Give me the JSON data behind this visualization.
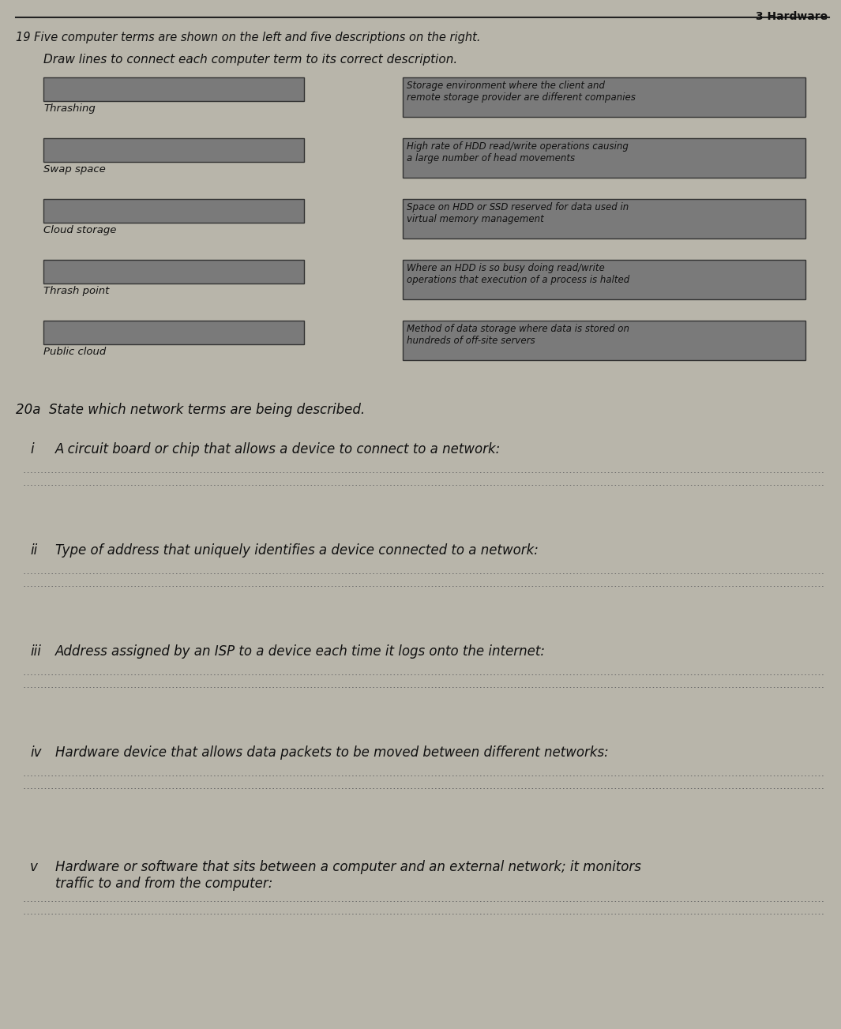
{
  "page_header": "3 Hardware",
  "bg_color": "#b8b5aa",
  "section_title": "19 Five computer terms are shown on the left and five descriptions on the right.",
  "section_subtitle": "Draw lines to connect each computer term to its correct description.",
  "left_terms": [
    "Thrashing",
    "Swap space",
    "Cloud storage",
    "Thrash point",
    "Public cloud"
  ],
  "right_descriptions": [
    "Storage environment where the client and\nremote storage provider are different companies",
    "High rate of HDD read/write operations causing\na large number of head movements",
    "Space on HDD or SSD reserved for data used in\nvirtual memory management",
    "Where an HDD is so busy doing read/write\noperations that execution of a process is halted",
    "Method of data storage where data is stored on\nhundreds of off-site servers"
  ],
  "left_box_color": "#7a7a7a",
  "right_box_color": "#7a7a7a",
  "box_text_color": "#111111",
  "section2_header": "20a  State which network terms are being described.",
  "questions": [
    {
      "prefix": "i",
      "text": "A circuit board or chip that allows a device to connect to a network:"
    },
    {
      "prefix": "ii",
      "text": "Type of address that uniquely identifies a device connected to a network:"
    },
    {
      "prefix": "iii",
      "text": "Address assigned by an ISP to a device each time it logs onto the internet:"
    },
    {
      "prefix": "iv",
      "text": "Hardware device that allows data packets to be moved between different networks:"
    },
    {
      "prefix": "v",
      "text": "Hardware or software that sits between a computer and an external network; it monitors\ntraffic to and from the computer:"
    }
  ],
  "answer_line_color": "#666666",
  "font_color": "#111111",
  "header_line_color": "#222222"
}
